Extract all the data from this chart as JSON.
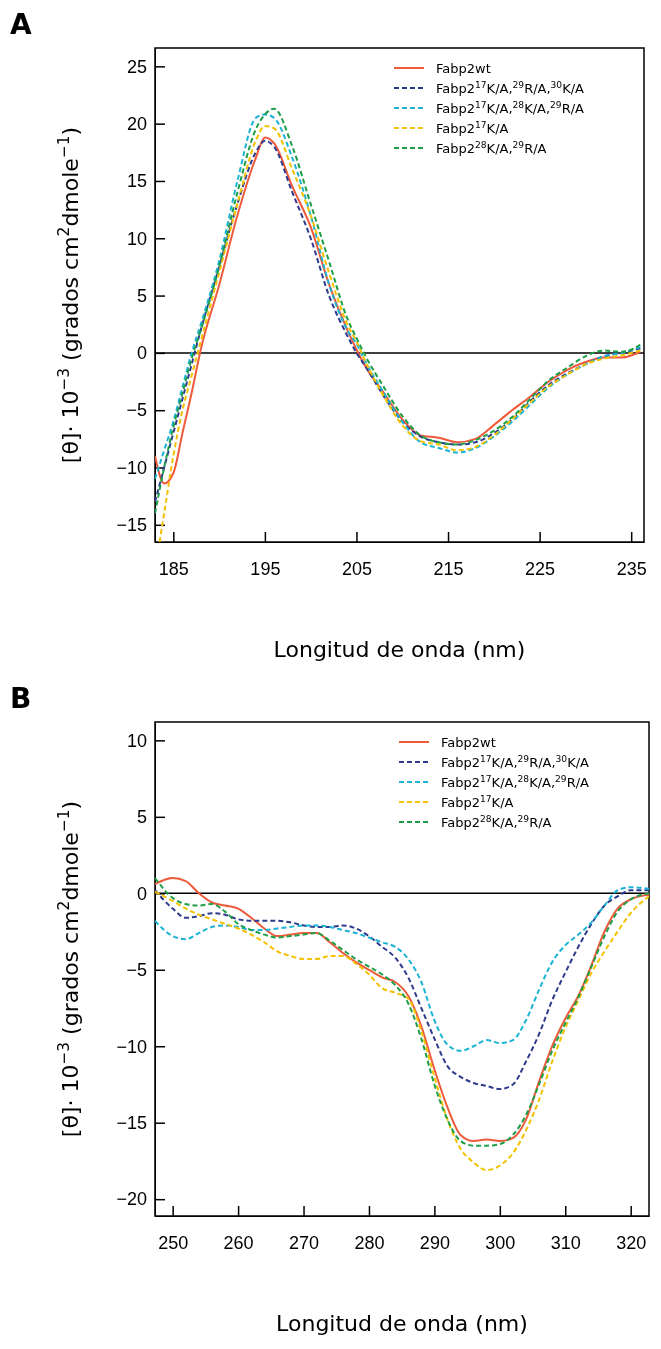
{
  "chart_data": [
    {
      "type": "line",
      "title": "A",
      "xlabel": "Longitud de onda (nm)",
      "ylabel": "[θ]· 10$^{−3}$ (grados cm$^{2}$dmole$^{−1}$)",
      "xlim": [
        183,
        236.4
      ],
      "ylim": [
        -16.5,
        26.6
      ],
      "xticks": [
        185,
        195,
        205,
        215,
        225,
        235
      ],
      "yticks": [
        {
          "value": -15,
          "label": "−15"
        },
        {
          "value": -10,
          "label": "−10"
        },
        {
          "value": -5,
          "label": "−5"
        },
        0,
        5,
        10,
        15,
        20,
        25
      ],
      "ref_lines": [
        {
          "axis": "y",
          "value": 0,
          "color": "#000000"
        }
      ],
      "legend": "top right",
      "grid": false,
      "x": [
        183,
        184,
        185,
        186,
        187,
        188,
        190,
        192,
        194,
        195,
        196,
        198,
        200,
        202,
        204,
        205,
        206,
        208,
        210,
        212,
        214,
        216,
        218,
        220,
        222,
        224,
        226,
        228,
        230,
        232,
        234,
        236
      ],
      "series": [
        {
          "name": "Fabp2wt",
          "color": "#ee5a3c",
          "line_style": "solid",
          "values": [
            -9,
            -11.4,
            -10.5,
            -7,
            -3.5,
            0.3,
            5.9,
            12,
            17,
            18.8,
            18.3,
            14.5,
            11,
            6,
            2,
            0.3,
            -1.2,
            -3.5,
            -5.8,
            -7.2,
            -7.4,
            -7.8,
            -7.5,
            -6.3,
            -5,
            -3.8,
            -2.5,
            -1.5,
            -0.8,
            -0.4,
            -0.4,
            0.1
          ]
        },
        {
          "name": "Fabp2$^{17}$K/A,$^{29}$R/A,$^{30}$K/A",
          "color": "#2e3a8c",
          "line_style": "dashed",
          "values": [
            -13,
            -10,
            -7,
            -4,
            -1,
            2,
            7.5,
            13,
            17.5,
            18.5,
            18,
            14,
            10,
            5,
            1.5,
            0,
            -1.2,
            -3.8,
            -6,
            -7.3,
            -7.8,
            -8,
            -7.8,
            -7,
            -5.8,
            -4.2,
            -2.8,
            -1.8,
            -1,
            -0.3,
            0,
            0.4
          ]
        },
        {
          "name": "Fabp2$^{17}$K/A,$^{28}$K/A,$^{29}$R/A",
          "color": "#1bb3d3",
          "line_style": "dashed",
          "values": [
            -11,
            -8.5,
            -6,
            -3,
            0,
            2.5,
            8,
            15,
            20.5,
            20.8,
            20.5,
            17,
            12,
            6,
            2,
            0.8,
            -0.8,
            -3.5,
            -6,
            -7.8,
            -8.3,
            -8.7,
            -8.3,
            -7.3,
            -6,
            -4.5,
            -3,
            -1.9,
            -1,
            -0.3,
            0,
            0.5
          ]
        },
        {
          "name": "Fabp2$^{17}$K/A",
          "color": "#f2c200",
          "line_style": "dashed",
          "x": [
            183.5,
            184,
            185,
            186,
            187,
            188,
            190,
            192,
            194,
            195,
            196,
            198,
            200,
            202,
            204,
            205,
            206,
            208,
            210,
            212,
            214,
            216,
            218,
            220,
            222,
            224,
            226,
            228,
            230,
            232,
            234,
            236
          ],
          "values": [
            -16.5,
            -14,
            -9,
            -5,
            -2,
            1,
            7,
            13,
            18.5,
            19.8,
            19.6,
            16,
            12,
            7,
            2.5,
            1,
            -0.8,
            -3.8,
            -6.3,
            -7.7,
            -8,
            -8.5,
            -8.2,
            -7.2,
            -5.8,
            -4.3,
            -2.9,
            -1.9,
            -1,
            -0.5,
            -0.2,
            0.2
          ]
        },
        {
          "name": "Fabp2$^{28}$K/A,$^{29}$R/A",
          "color": "#1f9e48",
          "line_style": "dashed",
          "values": [
            -14,
            -10,
            -6.5,
            -3.5,
            -0.5,
            2,
            7.5,
            14,
            19.5,
            20.8,
            21.3,
            18,
            13,
            8,
            3,
            1.3,
            -0.3,
            -3,
            -5.5,
            -7.2,
            -7.8,
            -8,
            -7.6,
            -6.8,
            -5.6,
            -4,
            -2.4,
            -1.3,
            -0.3,
            0.2,
            0.1,
            0.7
          ]
        }
      ]
    },
    {
      "type": "line",
      "title": "B",
      "xlabel": "Longitud de onda (nm)",
      "ylabel": "[θ]· 10$^{−3}$ (grados cm$^{2}$dmole$^{−1}$)",
      "xlim": [
        247.3,
        322.8
      ],
      "ylim": [
        -21.1,
        11.2
      ],
      "xticks": [
        250,
        260,
        270,
        280,
        290,
        300,
        310,
        320
      ],
      "yticks": [
        {
          "value": -20,
          "label": "−20"
        },
        {
          "value": -15,
          "label": "−15"
        },
        {
          "value": -10,
          "label": "−10"
        },
        {
          "value": -5,
          "label": "−5"
        },
        0,
        5,
        10
      ],
      "ref_lines": [
        {
          "axis": "y",
          "value": 0,
          "color": "#000000"
        }
      ],
      "legend": "top right",
      "grid": false,
      "x": [
        247.3,
        250,
        252,
        254,
        256,
        258,
        260,
        262,
        264,
        266,
        268,
        270,
        272,
        274,
        276,
        278,
        280,
        282,
        284,
        286,
        288,
        290,
        292,
        294,
        296,
        298,
        300,
        302,
        304,
        306,
        308,
        310,
        312,
        314,
        316,
        318,
        320,
        322.8
      ],
      "series": [
        {
          "name": "Fabp2wt",
          "color": "#ee5a3c",
          "line_style": "solid",
          "values": [
            0.6,
            1.0,
            0.8,
            0,
            -0.6,
            -0.8,
            -1.0,
            -1.6,
            -2.3,
            -2.8,
            -2.7,
            -2.6,
            -2.6,
            -3.2,
            -3.9,
            -4.5,
            -5,
            -5.5,
            -5.8,
            -6.7,
            -8.7,
            -11.5,
            -14,
            -15.8,
            -16.2,
            -16.1,
            -16.2,
            -16,
            -14.8,
            -12.3,
            -10,
            -8.2,
            -6.7,
            -4.7,
            -2.5,
            -1,
            -0.4,
            -0.1
          ]
        },
        {
          "name": "Fabp2$^{17}$K/A,$^{29}$R/A,$^{30}$K/A",
          "color": "#2e3a8c",
          "line_style": "dashed",
          "values": [
            0.2,
            -1,
            -1.6,
            -1.5,
            -1.3,
            -1.4,
            -1.7,
            -1.8,
            -1.8,
            -1.8,
            -1.9,
            -2.1,
            -2.2,
            -2.2,
            -2.1,
            -2.3,
            -2.8,
            -3.5,
            -4.2,
            -5.5,
            -7.5,
            -9.5,
            -11.3,
            -12,
            -12.4,
            -12.6,
            -12.8,
            -12.5,
            -11,
            -9.2,
            -7,
            -5.2,
            -3.5,
            -2,
            -0.8,
            -0.2,
            0.2,
            0.2
          ]
        },
        {
          "name": "Fabp2$^{17}$K/A,$^{28}$K/A,$^{29}$R/A",
          "color": "#1bb3d3",
          "line_style": "dashed",
          "values": [
            -1.8,
            -2.8,
            -3,
            -2.6,
            -2.2,
            -2.1,
            -2.2,
            -2.4,
            -2.4,
            -2.3,
            -2.2,
            -2.1,
            -2.1,
            -2.2,
            -2.4,
            -2.6,
            -2.9,
            -3.2,
            -3.5,
            -4.3,
            -5.8,
            -8.3,
            -9.9,
            -10.3,
            -10,
            -9.6,
            -9.8,
            -9.6,
            -8.3,
            -6.3,
            -4.5,
            -3.4,
            -2.7,
            -1.9,
            -0.8,
            0.2,
            0.4,
            0.3
          ]
        },
        {
          "name": "Fabp2$^{17}$K/A",
          "color": "#f2c200",
          "line_style": "dashed",
          "values": [
            0.1,
            -0.5,
            -1,
            -1.4,
            -1.7,
            -2,
            -2.3,
            -2.7,
            -3.2,
            -3.8,
            -4.1,
            -4.3,
            -4.3,
            -4.1,
            -4.1,
            -4.6,
            -5.3,
            -6.2,
            -6.5,
            -6.9,
            -9,
            -12,
            -14.8,
            -16.7,
            -17.6,
            -18.1,
            -17.8,
            -17,
            -15.5,
            -13.5,
            -11,
            -8.8,
            -7,
            -5.2,
            -3.8,
            -2.5,
            -1.3,
            -0.2
          ]
        },
        {
          "name": "Fabp2$^{28}$K/A,$^{29}$R/A",
          "color": "#1f9e48",
          "line_style": "dashed",
          "values": [
            1,
            -0.3,
            -0.7,
            -0.8,
            -0.7,
            -1.2,
            -2,
            -2.4,
            -2.7,
            -2.9,
            -2.8,
            -2.7,
            -2.6,
            -3.1,
            -3.7,
            -4.3,
            -4.8,
            -5.3,
            -6,
            -7.2,
            -9.5,
            -12.5,
            -14.8,
            -16.2,
            -16.5,
            -16.5,
            -16.4,
            -15.8,
            -14.5,
            -12.5,
            -10.3,
            -8.5,
            -6.8,
            -4.8,
            -2.8,
            -1.2,
            -0.4,
            0
          ]
        }
      ]
    }
  ]
}
